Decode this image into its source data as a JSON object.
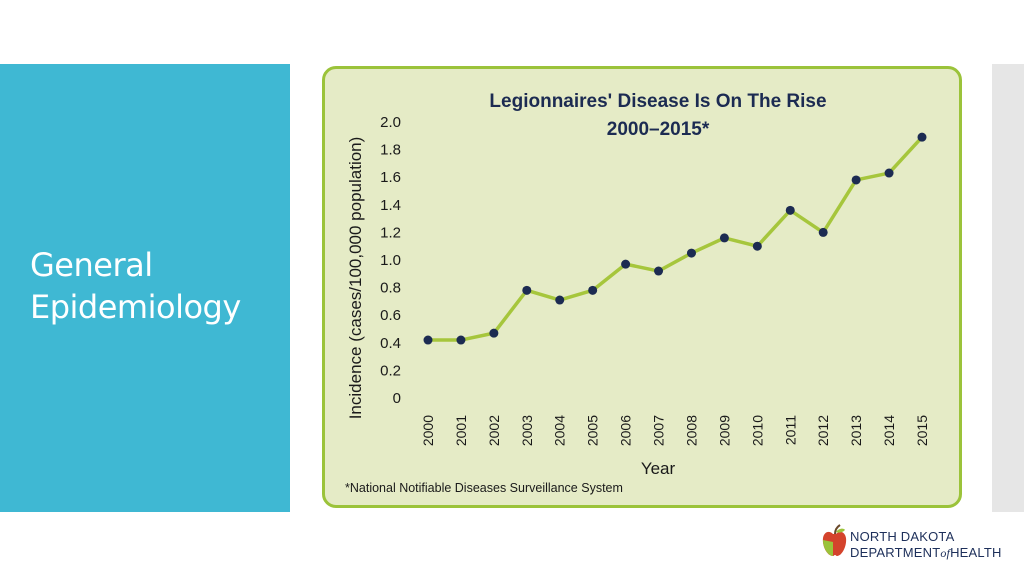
{
  "slide": {
    "title_line1": "General",
    "title_line2": "Epidemiology"
  },
  "logo": {
    "line1": "NORTH DAKOTA",
    "line2_a": "DEPARTMENT",
    "line2_of": "of",
    "line2_b": "HEALTH"
  },
  "chart_data": {
    "type": "line",
    "title_line1": "Legionnaires' Disease Is On The Rise",
    "title_line2": "2000–2015*",
    "xlabel": "Year",
    "ylabel": "Incidence (cases/100,000 population)",
    "x": [
      "2000",
      "2001",
      "2002",
      "2003",
      "2004",
      "2005",
      "2006",
      "2007",
      "2008",
      "2009",
      "2010",
      "2011",
      "2012",
      "2013",
      "2014",
      "2015"
    ],
    "series": [
      {
        "values": [
          0.42,
          0.42,
          0.47,
          0.78,
          0.71,
          0.78,
          0.97,
          0.92,
          1.05,
          1.16,
          1.1,
          1.36,
          1.2,
          1.58,
          1.63,
          1.89
        ]
      }
    ],
    "ylim": [
      0,
      2.0
    ],
    "yticks": [
      "0",
      "0.2",
      "0.4",
      "0.6",
      "0.8",
      "1.0",
      "1.2",
      "1.4",
      "1.6",
      "1.8",
      "2.0"
    ],
    "grid": false,
    "footnote": "*National Notifiable Diseases Surveillance System",
    "colors": {
      "line": "#a6c63c",
      "marker": "#1c2b52",
      "frame": "#9bc33a",
      "background": "#e5ebc6"
    }
  }
}
